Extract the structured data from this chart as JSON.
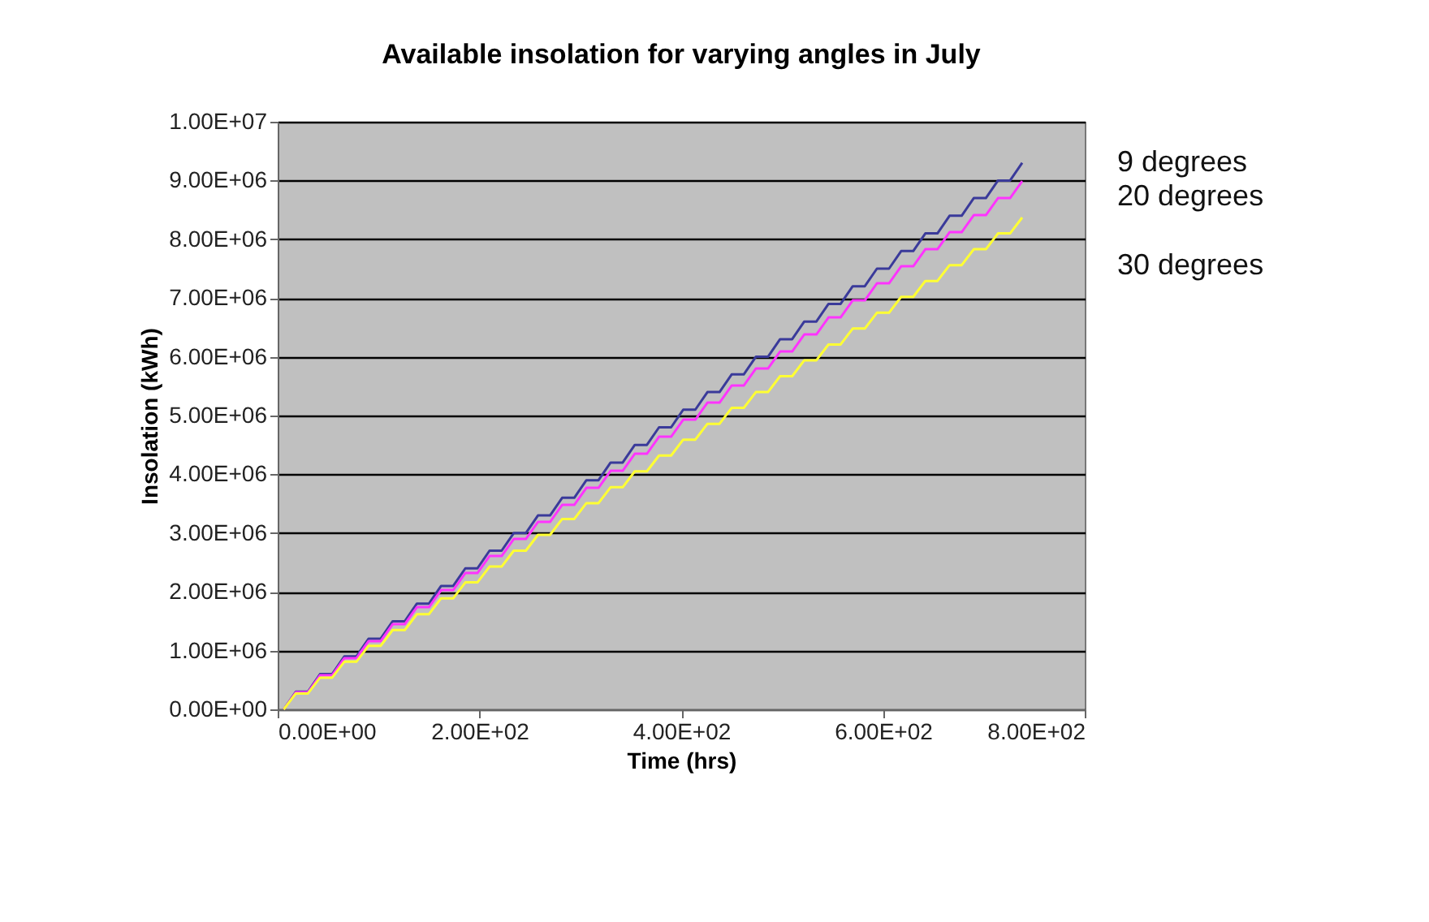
{
  "chart_data": {
    "type": "line",
    "title": "Available insolation for varying angles in July",
    "xlabel": "Time (hrs)",
    "ylabel": "Insolation (kWh)",
    "x": [
      6,
      18,
      30,
      42,
      54,
      66,
      78,
      90,
      102,
      114,
      126,
      138,
      150,
      162,
      174,
      186,
      198,
      210,
      222,
      234,
      246,
      258,
      270,
      282,
      294,
      306,
      318,
      330,
      342,
      354,
      366,
      378,
      390,
      402,
      414,
      426,
      438,
      450,
      462,
      474,
      486,
      498,
      510,
      522,
      534,
      546,
      558,
      570,
      582,
      594,
      606,
      618,
      630,
      642,
      654,
      666,
      678,
      690,
      702,
      714,
      726,
      738
    ],
    "series": [
      {
        "name": "9   degrees",
        "color": "#3a3a9a",
        "values": [
          0,
          300000,
          300000,
          600000,
          600000,
          900000,
          900000,
          1200000,
          1200000,
          1500000,
          1500000,
          1800000,
          1800000,
          2100000,
          2100000,
          2400000,
          2400000,
          2700000,
          2700000,
          3000000,
          3000000,
          3300000,
          3300000,
          3600000,
          3600000,
          3900000,
          3900000,
          4200000,
          4200000,
          4500000,
          4500000,
          4800000,
          4800000,
          5100000,
          5100000,
          5400000,
          5400000,
          5700000,
          5700000,
          6000000,
          6000000,
          6300000,
          6300000,
          6600000,
          6600000,
          6900000,
          6900000,
          7200000,
          7200000,
          7500000,
          7500000,
          7800000,
          7800000,
          8100000,
          8100000,
          8400000,
          8400000,
          8700000,
          8700000,
          9000000,
          9000000,
          9300000
        ]
      },
      {
        "name": "20 degrees",
        "color": "#ff33ff",
        "values": [
          0,
          290000,
          290000,
          580000,
          580000,
          870000,
          870000,
          1160000,
          1160000,
          1450000,
          1450000,
          1740000,
          1740000,
          2030000,
          2030000,
          2320000,
          2320000,
          2610000,
          2610000,
          2900000,
          2900000,
          3190000,
          3190000,
          3480000,
          3480000,
          3770000,
          3770000,
          4060000,
          4060000,
          4350000,
          4350000,
          4640000,
          4640000,
          4930000,
          4930000,
          5220000,
          5220000,
          5510000,
          5510000,
          5800000,
          5800000,
          6090000,
          6090000,
          6380000,
          6380000,
          6670000,
          6670000,
          6960000,
          6960000,
          7250000,
          7250000,
          7540000,
          7540000,
          7830000,
          7830000,
          8120000,
          8120000,
          8410000,
          8410000,
          8700000,
          8700000,
          8990000
        ]
      },
      {
        "name": "30 degrees",
        "color": "#ffff33",
        "values": [
          0,
          270000,
          270000,
          540000,
          540000,
          810000,
          810000,
          1080000,
          1080000,
          1350000,
          1350000,
          1620000,
          1620000,
          1890000,
          1890000,
          2160000,
          2160000,
          2430000,
          2430000,
          2700000,
          2700000,
          2970000,
          2970000,
          3240000,
          3240000,
          3510000,
          3510000,
          3780000,
          3780000,
          4050000,
          4050000,
          4320000,
          4320000,
          4590000,
          4590000,
          4860000,
          4860000,
          5130000,
          5130000,
          5400000,
          5400000,
          5670000,
          5670000,
          5940000,
          5940000,
          6210000,
          6210000,
          6480000,
          6480000,
          6750000,
          6750000,
          7020000,
          7020000,
          7290000,
          7290000,
          7560000,
          7560000,
          7830000,
          7830000,
          8100000,
          8100000,
          8370000
        ]
      }
    ],
    "xlim": [
      0,
      800
    ],
    "xticks": [
      {
        "value": 0,
        "label": "0.00E+00"
      },
      {
        "value": 200,
        "label": "2.00E+02"
      },
      {
        "value": 400,
        "label": "4.00E+02"
      },
      {
        "value": 600,
        "label": "6.00E+02"
      },
      {
        "value": 800,
        "label": "8.00E+02"
      }
    ],
    "ylim": [
      0,
      10000000
    ],
    "yticks": [
      {
        "value": 0,
        "label": "0.00E+00"
      },
      {
        "value": 1000000,
        "label": "1.00E+06"
      },
      {
        "value": 2000000,
        "label": "2.00E+06"
      },
      {
        "value": 3000000,
        "label": "3.00E+06"
      },
      {
        "value": 4000000,
        "label": "4.00E+06"
      },
      {
        "value": 5000000,
        "label": "5.00E+06"
      },
      {
        "value": 6000000,
        "label": "6.00E+06"
      },
      {
        "value": 7000000,
        "label": "7.00E+06"
      },
      {
        "value": 8000000,
        "label": "8.00E+06"
      },
      {
        "value": 9000000,
        "label": "9.00E+06"
      },
      {
        "value": 10000000,
        "label": "1.00E+07"
      }
    ],
    "grid": "y",
    "legend": false,
    "marker": "none",
    "line_style": "solid"
  }
}
